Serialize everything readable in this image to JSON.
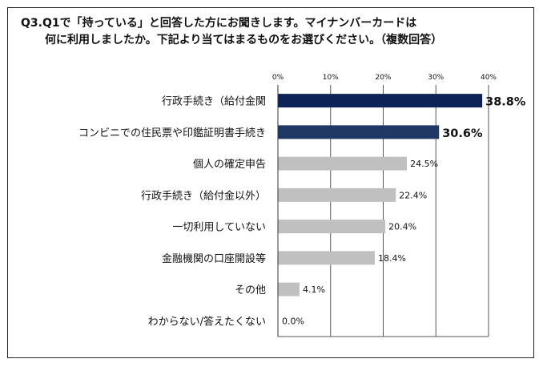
{
  "title": {
    "line1": "Q3.Q1で「持っている」と回答した方にお聞きします。マイナンバーカードは",
    "line2": "何に利用しましたか。下記より当てはまるものをお選びください。（複数回答）"
  },
  "chart_data": {
    "type": "bar",
    "orientation": "horizontal",
    "title": "Q3.Q1で「持っている」と回答した方にお聞きします。マイナンバーカードは何に利用しましたか。下記より当てはまるものをお選びください。（複数回答）",
    "categories": [
      "行政手続き（給付金関",
      "コンビニでの住民票や印鑑証明書手続き",
      "個人の確定申告",
      "行政手続き（給付金以外）",
      "一切利用していない",
      "金融機関の口座開設等",
      "その他",
      "わからない/答えたくない"
    ],
    "values": [
      38.8,
      30.6,
      24.5,
      22.4,
      20.4,
      18.4,
      4.1,
      0.0
    ],
    "value_labels": [
      "38.8%",
      "30.6%",
      "24.5%",
      "22.4%",
      "20.4%",
      "18.4%",
      "4.1%",
      "0.0%"
    ],
    "xlim": [
      0,
      40
    ],
    "ticks": [
      0,
      10,
      20,
      30,
      40
    ],
    "tick_labels": [
      "0%",
      "10%",
      "20%",
      "30%",
      "40%"
    ],
    "grid": true,
    "axis_position": "top",
    "legend": "none",
    "colors": [
      "#0d2357",
      "#203864",
      "#c0c0c0",
      "#c0c0c0",
      "#c0c0c0",
      "#c0c0c0",
      "#c0c0c0",
      "#c0c0c0"
    ],
    "highlight_labels": [
      true,
      true,
      false,
      false,
      false,
      false,
      false,
      false
    ]
  }
}
